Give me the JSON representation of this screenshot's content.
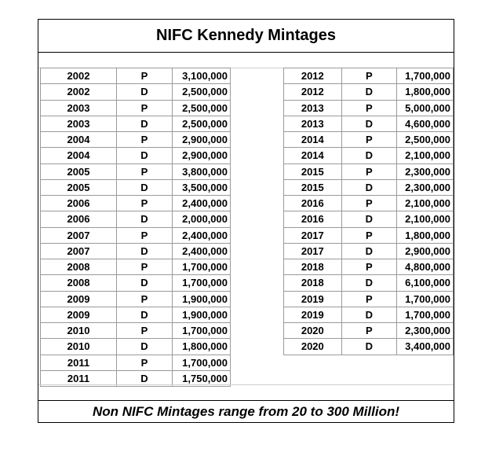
{
  "title": "NIFC Kennedy Mintages",
  "footer": "Non NIFC Mintages range from 20 to 300 Million!",
  "left_rows": [
    {
      "year": "2002",
      "mint": "P",
      "qty": "3,100,000"
    },
    {
      "year": "2002",
      "mint": "D",
      "qty": "2,500,000"
    },
    {
      "year": "2003",
      "mint": "P",
      "qty": "2,500,000"
    },
    {
      "year": "2003",
      "mint": "D",
      "qty": "2,500,000"
    },
    {
      "year": "2004",
      "mint": "P",
      "qty": "2,900,000"
    },
    {
      "year": "2004",
      "mint": "D",
      "qty": "2,900,000"
    },
    {
      "year": "2005",
      "mint": "P",
      "qty": "3,800,000"
    },
    {
      "year": "2005",
      "mint": "D",
      "qty": "3,500,000"
    },
    {
      "year": "2006",
      "mint": "P",
      "qty": "2,400,000"
    },
    {
      "year": "2006",
      "mint": "D",
      "qty": "2,000,000"
    },
    {
      "year": "2007",
      "mint": "P",
      "qty": "2,400,000"
    },
    {
      "year": "2007",
      "mint": "D",
      "qty": "2,400,000"
    },
    {
      "year": "2008",
      "mint": "P",
      "qty": "1,700,000"
    },
    {
      "year": "2008",
      "mint": "D",
      "qty": "1,700,000"
    },
    {
      "year": "2009",
      "mint": "P",
      "qty": "1,900,000"
    },
    {
      "year": "2009",
      "mint": "D",
      "qty": "1,900,000"
    },
    {
      "year": "2010",
      "mint": "P",
      "qty": "1,700,000"
    },
    {
      "year": "2010",
      "mint": "D",
      "qty": "1,800,000"
    },
    {
      "year": "2011",
      "mint": "P",
      "qty": "1,700,000"
    },
    {
      "year": "2011",
      "mint": "D",
      "qty": "1,750,000"
    }
  ],
  "right_rows": [
    {
      "year": "2012",
      "mint": "P",
      "qty": "1,700,000"
    },
    {
      "year": "2012",
      "mint": "D",
      "qty": "1,800,000"
    },
    {
      "year": "2013",
      "mint": "P",
      "qty": "5,000,000"
    },
    {
      "year": "2013",
      "mint": "D",
      "qty": "4,600,000"
    },
    {
      "year": "2014",
      "mint": "P",
      "qty": "2,500,000"
    },
    {
      "year": "2014",
      "mint": "D",
      "qty": "2,100,000"
    },
    {
      "year": "2015",
      "mint": "P",
      "qty": "2,300,000"
    },
    {
      "year": "2015",
      "mint": "D",
      "qty": "2,300,000"
    },
    {
      "year": "2016",
      "mint": "P",
      "qty": "2,100,000"
    },
    {
      "year": "2016",
      "mint": "D",
      "qty": "2,100,000"
    },
    {
      "year": "2017",
      "mint": "P",
      "qty": "1,800,000"
    },
    {
      "year": "2017",
      "mint": "D",
      "qty": "2,900,000"
    },
    {
      "year": "2018",
      "mint": "P",
      "qty": "4,800,000"
    },
    {
      "year": "2018",
      "mint": "D",
      "qty": "6,100,000"
    },
    {
      "year": "2019",
      "mint": "P",
      "qty": "1,700,000"
    },
    {
      "year": "2019",
      "mint": "D",
      "qty": "1,700,000"
    },
    {
      "year": "2020",
      "mint": "P",
      "qty": "2,300,000"
    },
    {
      "year": "2020",
      "mint": "D",
      "qty": "3,400,000"
    }
  ]
}
